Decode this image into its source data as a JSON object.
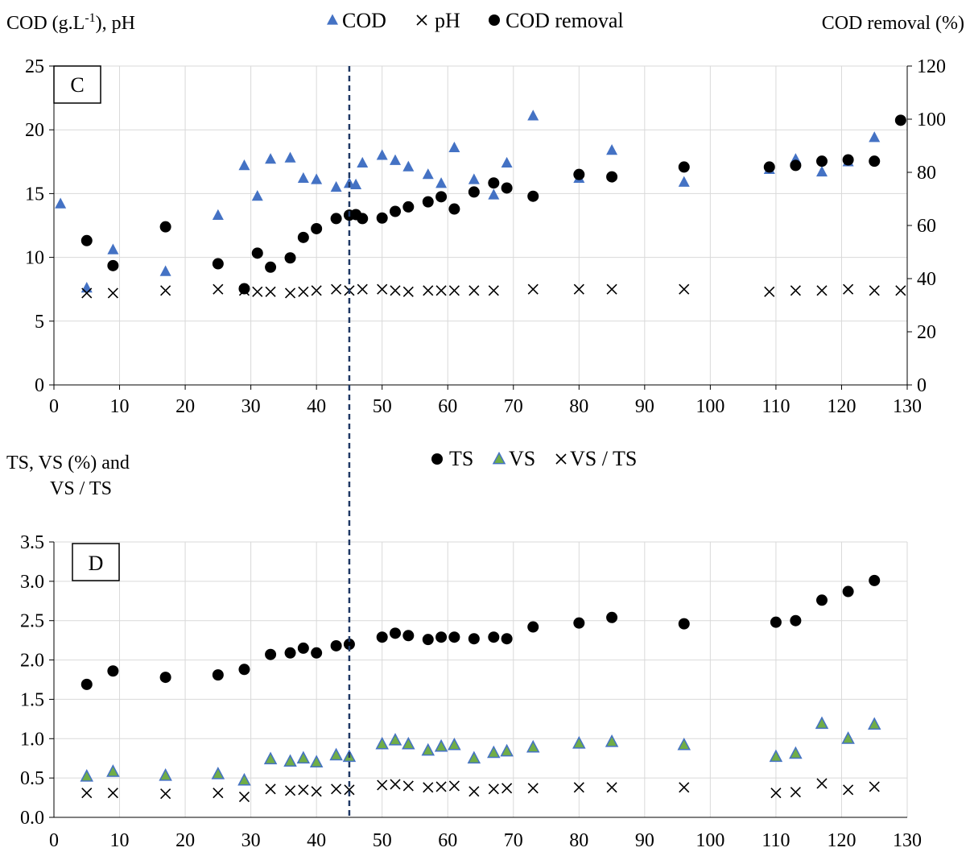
{
  "colors": {
    "cod": "#4472C4",
    "vs_fill": "#70AD47",
    "vs_stroke": "#4472C4",
    "marker_dark": "#000000",
    "grid": "#D9D9D9",
    "divider": "#1F3864"
  },
  "divider_x_day": 45,
  "chart_data": [
    {
      "type": "scatter",
      "panel_label": "C",
      "ylabel_left": "COD (g.L-1), pH",
      "ylabel_left_main": "COD (g.L",
      "ylabel_left_sup": "-1",
      "ylabel_left_tail": "), pH",
      "ylabel_right": "COD removal (%)",
      "xlim": [
        0,
        130
      ],
      "ylim_left": [
        0,
        25
      ],
      "ylim_right": [
        0,
        120
      ],
      "x_ticks": [
        "0",
        "10",
        "20",
        "30",
        "40",
        "50",
        "60",
        "70",
        "80",
        "90",
        "100",
        "110",
        "120",
        "130"
      ],
      "y_ticks_left": [
        "0",
        "5",
        "10",
        "15",
        "20",
        "25"
      ],
      "y_ticks_right": [
        "0",
        "20",
        "40",
        "60",
        "80",
        "100",
        "120"
      ],
      "grid": true,
      "legend_position": "top-center",
      "legend": [
        "COD",
        "pH",
        "COD removal"
      ],
      "series": [
        {
          "name": "COD",
          "axis": "left",
          "marker": "triangle",
          "points": [
            [
              1,
              14.2
            ],
            [
              5,
              7.6
            ],
            [
              9,
              10.6
            ],
            [
              17,
              8.9
            ],
            [
              25,
              13.3
            ],
            [
              29,
              17.2
            ],
            [
              31,
              14.8
            ],
            [
              33,
              17.7
            ],
            [
              36,
              17.8
            ],
            [
              38,
              16.2
            ],
            [
              40,
              16.1
            ],
            [
              43,
              15.5
            ],
            [
              45,
              15.8
            ],
            [
              46,
              15.7
            ],
            [
              47,
              17.4
            ],
            [
              50,
              18
            ],
            [
              52,
              17.6
            ],
            [
              54,
              17.1
            ],
            [
              57,
              16.5
            ],
            [
              59,
              15.8
            ],
            [
              61,
              18.6
            ],
            [
              64,
              16.1
            ],
            [
              67,
              14.9
            ],
            [
              69,
              17.4
            ],
            [
              73,
              21.1
            ],
            [
              80,
              16.2
            ],
            [
              85,
              18.4
            ],
            [
              96,
              15.9
            ],
            [
              109,
              16.9
            ],
            [
              113,
              17.7
            ],
            [
              117,
              16.7
            ],
            [
              121,
              17.5
            ],
            [
              125,
              19.4
            ]
          ]
        },
        {
          "name": "pH",
          "axis": "left",
          "marker": "x",
          "points": [
            [
              5,
              7.2
            ],
            [
              9,
              7.2
            ],
            [
              17,
              7.4
            ],
            [
              25,
              7.5
            ],
            [
              29,
              7.4
            ],
            [
              31,
              7.3
            ],
            [
              33,
              7.3
            ],
            [
              36,
              7.2
            ],
            [
              38,
              7.3
            ],
            [
              40,
              7.4
            ],
            [
              43,
              7.5
            ],
            [
              45,
              7.4
            ],
            [
              47,
              7.5
            ],
            [
              50,
              7.5
            ],
            [
              52,
              7.4
            ],
            [
              54,
              7.3
            ],
            [
              57,
              7.4
            ],
            [
              59,
              7.4
            ],
            [
              61,
              7.4
            ],
            [
              64,
              7.4
            ],
            [
              67,
              7.4
            ],
            [
              73,
              7.5
            ],
            [
              80,
              7.5
            ],
            [
              85,
              7.5
            ],
            [
              96,
              7.5
            ],
            [
              109,
              7.3
            ],
            [
              113,
              7.4
            ],
            [
              117,
              7.4
            ],
            [
              121,
              7.5
            ],
            [
              125,
              7.4
            ],
            [
              129,
              7.4
            ]
          ]
        },
        {
          "name": "COD removal",
          "axis": "right",
          "marker": "circle",
          "points": [
            [
              5,
              54.3
            ],
            [
              9,
              44.9
            ],
            [
              17,
              59.5
            ],
            [
              25,
              45.6
            ],
            [
              29,
              36.2
            ],
            [
              31,
              49.6
            ],
            [
              33,
              44.3
            ],
            [
              36,
              47.8
            ],
            [
              38,
              55.5
            ],
            [
              40,
              58.8
            ],
            [
              43,
              62.6
            ],
            [
              45,
              63.9
            ],
            [
              46,
              64.1
            ],
            [
              47,
              62.6
            ],
            [
              50,
              62.8
            ],
            [
              52,
              65.3
            ],
            [
              54,
              67.0
            ],
            [
              57,
              68.9
            ],
            [
              59,
              70.8
            ],
            [
              61,
              66.2
            ],
            [
              64,
              72.6
            ],
            [
              67,
              76.0
            ],
            [
              69,
              74.1
            ],
            [
              73,
              71.0
            ],
            [
              80,
              79.2
            ],
            [
              85,
              78.3
            ],
            [
              96,
              82.0
            ],
            [
              109,
              82.0
            ],
            [
              113,
              82.6
            ],
            [
              117,
              84.2
            ],
            [
              121,
              84.7
            ],
            [
              125,
              84.2
            ],
            [
              129,
              99.6
            ]
          ]
        }
      ]
    },
    {
      "type": "scatter",
      "panel_label": "D",
      "ylabel_line1": "TS, VS (%) and",
      "ylabel_line2": "VS / TS",
      "xlim": [
        0,
        130
      ],
      "ylim": [
        0,
        3.5
      ],
      "x_ticks": [
        "0",
        "10",
        "20",
        "30",
        "40",
        "50",
        "60",
        "70",
        "80",
        "90",
        "100",
        "110",
        "120",
        "130"
      ],
      "y_ticks": [
        "0.0",
        "0.5",
        "1.0",
        "1.5",
        "2.0",
        "2.5",
        "3.0",
        "3.5"
      ],
      "grid": true,
      "legend_position": "top-center",
      "legend": [
        "TS",
        "VS",
        "VS / TS"
      ],
      "series": [
        {
          "name": "TS",
          "marker": "circle",
          "points": [
            [
              5,
              1.69
            ],
            [
              9,
              1.86
            ],
            [
              17,
              1.78
            ],
            [
              25,
              1.81
            ],
            [
              29,
              1.88
            ],
            [
              33,
              2.07
            ],
            [
              36,
              2.09
            ],
            [
              38,
              2.15
            ],
            [
              40,
              2.09
            ],
            [
              43,
              2.18
            ],
            [
              45,
              2.2
            ],
            [
              50,
              2.29
            ],
            [
              52,
              2.34
            ],
            [
              54,
              2.31
            ],
            [
              57,
              2.26
            ],
            [
              59,
              2.29
            ],
            [
              61,
              2.29
            ],
            [
              64,
              2.27
            ],
            [
              67,
              2.29
            ],
            [
              69,
              2.27
            ],
            [
              73,
              2.42
            ],
            [
              80,
              2.47
            ],
            [
              85,
              2.54
            ],
            [
              96,
              2.46
            ],
            [
              110,
              2.48
            ],
            [
              113,
              2.5
            ],
            [
              117,
              2.76
            ],
            [
              121,
              2.87
            ],
            [
              125,
              3.01
            ]
          ]
        },
        {
          "name": "VS",
          "marker": "triangle",
          "points": [
            [
              5,
              0.52
            ],
            [
              9,
              0.58
            ],
            [
              17,
              0.53
            ],
            [
              25,
              0.55
            ],
            [
              29,
              0.47
            ],
            [
              33,
              0.74
            ],
            [
              36,
              0.71
            ],
            [
              38,
              0.75
            ],
            [
              40,
              0.7
            ],
            [
              43,
              0.79
            ],
            [
              45,
              0.77
            ],
            [
              50,
              0.93
            ],
            [
              52,
              0.98
            ],
            [
              54,
              0.93
            ],
            [
              57,
              0.85
            ],
            [
              59,
              0.9
            ],
            [
              61,
              0.92
            ],
            [
              64,
              0.75
            ],
            [
              67,
              0.82
            ],
            [
              69,
              0.84
            ],
            [
              73,
              0.89
            ],
            [
              80,
              0.94
            ],
            [
              85,
              0.96
            ],
            [
              96,
              0.92
            ],
            [
              110,
              0.77
            ],
            [
              113,
              0.81
            ],
            [
              117,
              1.19
            ],
            [
              121,
              1.0
            ],
            [
              125,
              1.18
            ]
          ]
        },
        {
          "name": "VS / TS",
          "marker": "x",
          "points": [
            [
              5,
              0.31
            ],
            [
              9,
              0.31
            ],
            [
              17,
              0.3
            ],
            [
              25,
              0.31
            ],
            [
              29,
              0.26
            ],
            [
              33,
              0.36
            ],
            [
              36,
              0.34
            ],
            [
              38,
              0.35
            ],
            [
              40,
              0.33
            ],
            [
              43,
              0.36
            ],
            [
              45,
              0.35
            ],
            [
              50,
              0.41
            ],
            [
              52,
              0.42
            ],
            [
              54,
              0.4
            ],
            [
              57,
              0.38
            ],
            [
              59,
              0.39
            ],
            [
              61,
              0.4
            ],
            [
              64,
              0.33
            ],
            [
              67,
              0.36
            ],
            [
              69,
              0.37
            ],
            [
              73,
              0.37
            ],
            [
              80,
              0.38
            ],
            [
              85,
              0.38
            ],
            [
              96,
              0.38
            ],
            [
              110,
              0.31
            ],
            [
              113,
              0.32
            ],
            [
              117,
              0.43
            ],
            [
              121,
              0.35
            ],
            [
              125,
              0.39
            ]
          ]
        }
      ]
    }
  ]
}
